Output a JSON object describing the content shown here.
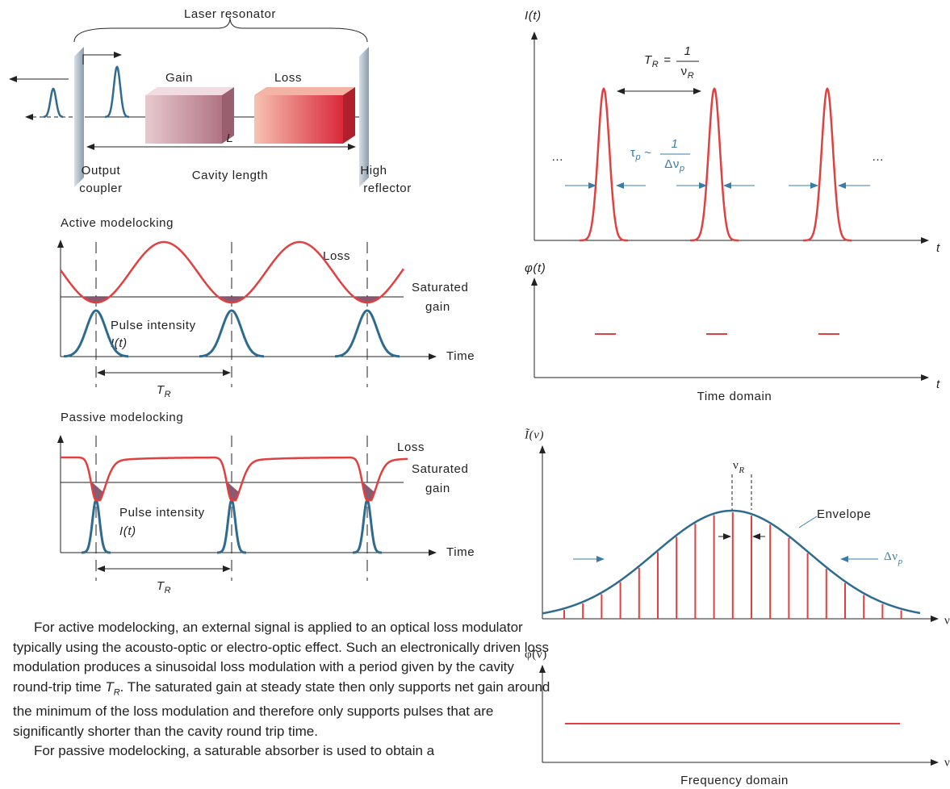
{
  "resonator": {
    "title": "Laser resonator",
    "gain": "Gain",
    "loss": "Loss",
    "length_symbol": "L",
    "output_coupler": [
      "Output",
      "coupler"
    ],
    "cavity_length": "Cavity length",
    "high_reflector": [
      "High",
      "reflector"
    ]
  },
  "active": {
    "title": "Active modelocking",
    "loss": "Loss",
    "saturated_gain": [
      "Saturated",
      "gain"
    ],
    "pulse_intensity": "Pulse intensity",
    "intensity_symbol": "I(t)",
    "time": "Time",
    "period": {
      "main": "T",
      "sub": "R"
    }
  },
  "passive": {
    "title": "Passive modelocking",
    "loss": "Loss",
    "saturated_gain": [
      "Saturated",
      "gain"
    ],
    "pulse_intensity": "Pulse intensity",
    "intensity_symbol": "I(t)",
    "time": "Time",
    "period": {
      "main": "T",
      "sub": "R"
    }
  },
  "text": {
    "paragraphs": [
      {
        "before": "For active modelocking, an external signal is applied to an optical loss modulator typically using the acousto-optic or electro-optic effect. Such an electronically driven loss modulation produces a sinusoidal loss modulation with a period given by the cavity round-trip time ",
        "var": "T",
        "sub": "R",
        "after": ". The saturated gain at steady state then only supports net gain around the minimum of the loss modulation and therefore only supports pulses that are significantly shorter than the cavity round trip time."
      },
      {
        "before": "For passive modelocking, a saturable absorber is used to obtain a",
        "var": "",
        "sub": "",
        "after": ""
      }
    ]
  },
  "time_domain": {
    "intensity_label": "I(t)",
    "period": {
      "lhs": "T",
      "lhs_sub": "R",
      "eq": "=",
      "num": "1",
      "den": "ν",
      "den_sub": "R"
    },
    "duration": {
      "lhs": "τ",
      "lhs_sub": "p",
      "rel": "~",
      "num": "1",
      "den": "Δν",
      "den_sub": "p"
    },
    "ellipsis": [
      "…",
      "…"
    ],
    "time_axis": [
      "t",
      "t"
    ],
    "phase_label": "φ(t)",
    "caption": "Time domain"
  },
  "frequency_domain": {
    "spectrum_label": "Ĩ(ν)",
    "spacing": {
      "main": "ν",
      "sub": "R"
    },
    "envelope": "Envelope",
    "bandwidth": {
      "main": "Δν",
      "sub": "p"
    },
    "freq_axis": [
      "ν",
      "ν"
    ],
    "phase_label": "φ̃(ν)",
    "caption": "Frequency domain"
  }
}
